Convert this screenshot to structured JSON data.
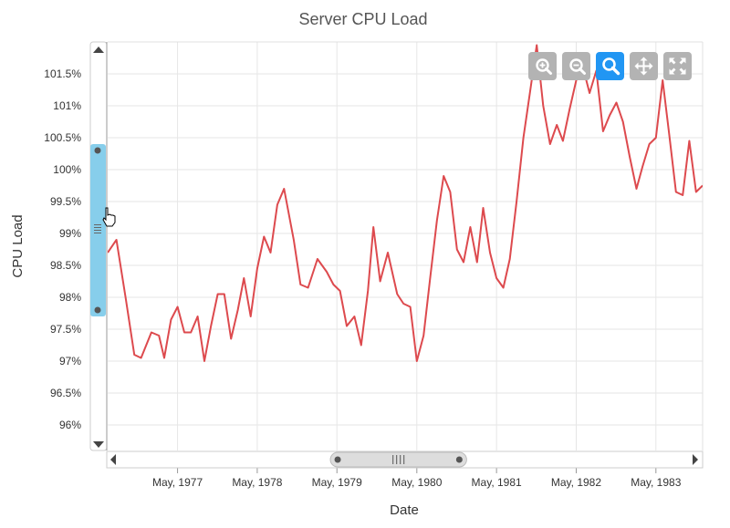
{
  "chart_data": {
    "type": "line",
    "title": "Server CPU Load",
    "xlabel": "Date",
    "ylabel": "CPU Load",
    "y_ticks": [
      "96%",
      "96.5%",
      "97%",
      "97.5%",
      "98%",
      "98.5%",
      "99%",
      "99.5%",
      "100%",
      "100.5%",
      "101%",
      "101.5%"
    ],
    "x_ticks": [
      "May, 1977",
      "May, 1978",
      "May, 1979",
      "May, 1980",
      "May, 1981",
      "May, 1982",
      "May, 1983"
    ],
    "ylim": [
      95.6,
      102.0
    ],
    "xlim": [
      "1976-06-15",
      "1983-12-01"
    ],
    "grid": true,
    "legend": "none",
    "series_color": "#dd4a4e",
    "series": [
      {
        "x": [
          "1976-06-15",
          "1976-07-25",
          "1976-09-05",
          "1976-10-15",
          "1976-11-15",
          "1977-01-01",
          "1977-02-05",
          "1977-03-01",
          "1977-04-01",
          "1977-05-01",
          "1977-06-01",
          "1977-07-01",
          "1977-08-01",
          "1977-09-01",
          "1977-10-01",
          "1977-11-01",
          "1977-12-01",
          "1978-01-01",
          "1978-02-01",
          "1978-03-01",
          "1978-04-01",
          "1978-05-01",
          "1978-06-01",
          "1978-07-01",
          "1978-08-01",
          "1978-09-01",
          "1978-10-15",
          "1978-11-15",
          "1978-12-20",
          "1979-02-01",
          "1979-03-15",
          "1979-04-15",
          "1979-05-15",
          "1979-06-15",
          "1979-07-20",
          "1979-08-20",
          "1979-09-20",
          "1979-10-15",
          "1979-11-15",
          "1979-12-20",
          "1980-02-01",
          "1980-03-01",
          "1980-04-01",
          "1980-05-01",
          "1980-06-01",
          "1980-07-01",
          "1980-08-01",
          "1980-09-01",
          "1980-10-01",
          "1980-11-01",
          "1980-12-01",
          "1981-01-01",
          "1981-02-01",
          "1981-03-01",
          "1981-04-01",
          "1981-05-01",
          "1981-06-01",
          "1981-07-01",
          "1981-08-01",
          "1981-09-01",
          "1981-10-01",
          "1981-11-01",
          "1981-12-01",
          "1982-01-01",
          "1982-02-01",
          "1982-03-01",
          "1982-04-01",
          "1982-05-01",
          "1982-06-01",
          "1982-07-01",
          "1982-08-01",
          "1982-09-01",
          "1982-10-01",
          "1982-11-01",
          "1982-12-01",
          "1983-01-01",
          "1983-02-01",
          "1983-03-01",
          "1983-04-01",
          "1983-05-01",
          "1983-06-01",
          "1983-07-01",
          "1983-08-01",
          "1983-09-01",
          "1983-10-01",
          "1983-11-01",
          "1983-12-01"
        ],
        "y": [
          98.7,
          98.9,
          98.0,
          97.1,
          97.05,
          97.45,
          97.4,
          97.05,
          97.65,
          97.85,
          97.45,
          97.45,
          97.7,
          97.0,
          97.55,
          98.05,
          98.05,
          97.35,
          97.8,
          98.3,
          97.7,
          98.45,
          98.95,
          98.7,
          99.45,
          99.7,
          98.9,
          98.2,
          98.15,
          98.6,
          98.4,
          98.2,
          98.1,
          97.55,
          97.7,
          97.25,
          98.1,
          99.1,
          98.25,
          98.7,
          98.05,
          97.9,
          97.85,
          97.0,
          97.4,
          98.3,
          99.2,
          99.9,
          99.65,
          98.75,
          98.55,
          99.1,
          98.55,
          99.4,
          98.7,
          98.3,
          98.15,
          98.6,
          99.5,
          100.5,
          101.2,
          101.95,
          101.0,
          100.4,
          100.7,
          100.45,
          100.95,
          101.4,
          101.6,
          101.2,
          101.55,
          100.6,
          100.85,
          101.05,
          100.75,
          100.2,
          99.7,
          100.05,
          100.4,
          100.5,
          101.4,
          100.55,
          99.65,
          99.6,
          100.45,
          99.65,
          99.75
        ]
      }
    ]
  },
  "toolbar": {
    "accent_color": "#2196f3",
    "button_color": "#b3b3b3",
    "buttons": [
      {
        "icon": "zoom-in-icon",
        "active": false
      },
      {
        "icon": "zoom-out-icon",
        "active": false
      },
      {
        "icon": "selection-zoom-icon",
        "active": true
      },
      {
        "icon": "pan-icon",
        "active": false
      },
      {
        "icon": "reset-zoom-icon",
        "active": false
      }
    ]
  },
  "scrollbars": {
    "vertical": {
      "thumb_color": "#87ceeb",
      "thumb_range": [
        97.7,
        100.4
      ]
    },
    "horizontal": {
      "thumb_color": "#dddddd",
      "thumb_range": [
        "1979-04-01",
        "1980-12-15"
      ]
    }
  }
}
